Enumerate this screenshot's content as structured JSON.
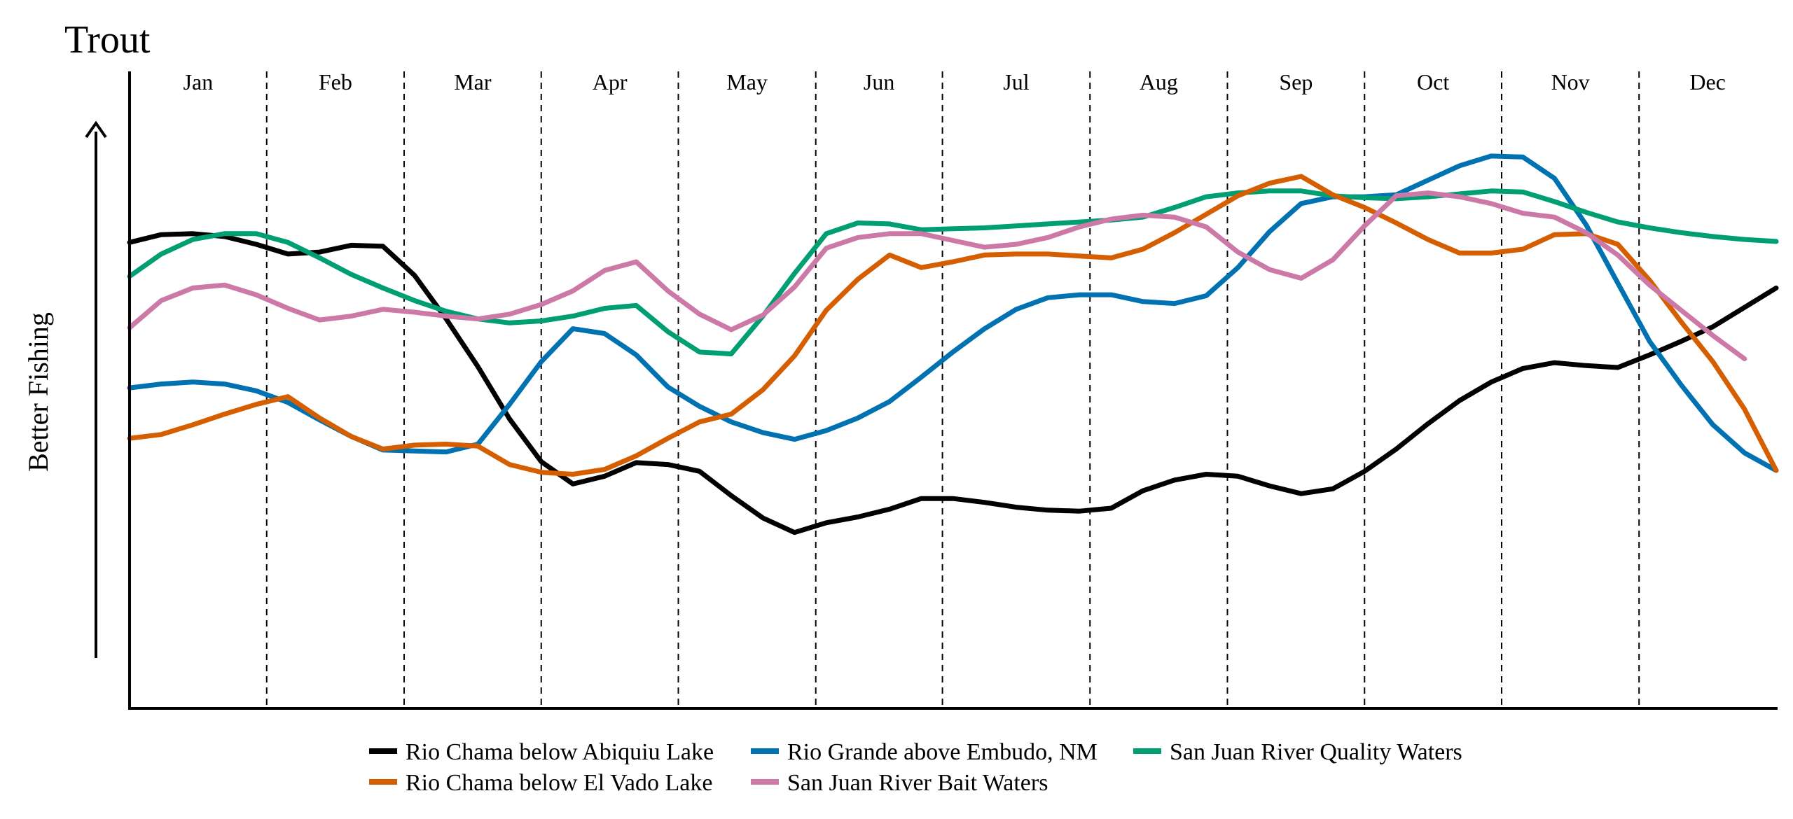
{
  "chart_data": {
    "type": "line",
    "title": "Trout",
    "ylabel": "Better Fishing",
    "xlabel": "",
    "x_unit": "week",
    "xlim": [
      0,
      52
    ],
    "ylim": [
      0,
      100
    ],
    "months": [
      "Jan",
      "Feb",
      "Mar",
      "Apr",
      "May",
      "Jun",
      "Jul",
      "Aug",
      "Sep",
      "Oct",
      "Nov",
      "Dec"
    ],
    "month_boundaries": [
      0,
      4.33,
      8.67,
      13,
      17.33,
      21.67,
      25.67,
      30.33,
      34.67,
      39,
      43.33,
      47.67,
      52
    ],
    "grid": false,
    "legend_position": "bottom",
    "series": [
      {
        "name": "Rio Chama below Abiquiu Lake",
        "color": "#000000",
        "points": [
          [
            0,
            75
          ],
          [
            1,
            76.6
          ],
          [
            2,
            76.8
          ],
          [
            3,
            76.2
          ],
          [
            4,
            74.6
          ],
          [
            5,
            72.6
          ],
          [
            6,
            73
          ],
          [
            7,
            74.4
          ],
          [
            8,
            74.2
          ],
          [
            9,
            68.2
          ],
          [
            10,
            59.2
          ],
          [
            11,
            49.4
          ],
          [
            12,
            38.6
          ],
          [
            13,
            29.8
          ],
          [
            14,
            25.2
          ],
          [
            15,
            26.8
          ],
          [
            16,
            29.6
          ],
          [
            17,
            29.2
          ],
          [
            18,
            27.8
          ],
          [
            19,
            22.8
          ],
          [
            20,
            18.2
          ],
          [
            21,
            15.2
          ],
          [
            22,
            17.2
          ],
          [
            23,
            18.4
          ],
          [
            24,
            20
          ],
          [
            25,
            22.2
          ],
          [
            26,
            22.2
          ],
          [
            27,
            21.4
          ],
          [
            28,
            20.4
          ],
          [
            29,
            19.8
          ],
          [
            30,
            19.6
          ],
          [
            31,
            20.2
          ],
          [
            32,
            23.8
          ],
          [
            33,
            26
          ],
          [
            34,
            27.2
          ],
          [
            35,
            26.8
          ],
          [
            36,
            24.8
          ],
          [
            37,
            23.2
          ],
          [
            38,
            24.2
          ],
          [
            39,
            27.8
          ],
          [
            40,
            32.4
          ],
          [
            41,
            37.6
          ],
          [
            42,
            42.4
          ],
          [
            43,
            46.2
          ],
          [
            44,
            49
          ],
          [
            45,
            50.2
          ],
          [
            46,
            49.6
          ],
          [
            47,
            49.2
          ],
          [
            48,
            51.8
          ],
          [
            49,
            54.6
          ],
          [
            50,
            57.6
          ],
          [
            51,
            61.6
          ],
          [
            52,
            65.6
          ]
        ]
      },
      {
        "name": "Rio Grande above Embudo, NM",
        "color": "#0072b2",
        "points": [
          [
            0,
            45
          ],
          [
            1,
            45.8
          ],
          [
            2,
            46.2
          ],
          [
            3,
            45.8
          ],
          [
            4,
            44.4
          ],
          [
            5,
            42
          ],
          [
            6,
            38.4
          ],
          [
            7,
            35
          ],
          [
            8,
            32.2
          ],
          [
            9,
            32
          ],
          [
            10,
            31.8
          ],
          [
            11,
            33.4
          ],
          [
            12,
            41.6
          ],
          [
            13,
            50.4
          ],
          [
            14,
            57.2
          ],
          [
            15,
            56.2
          ],
          [
            16,
            51.8
          ],
          [
            17,
            45.2
          ],
          [
            18,
            41.2
          ],
          [
            19,
            38
          ],
          [
            20,
            35.8
          ],
          [
            21,
            34.4
          ],
          [
            22,
            36.2
          ],
          [
            23,
            38.8
          ],
          [
            24,
            42.2
          ],
          [
            25,
            47.2
          ],
          [
            26,
            52.4
          ],
          [
            27,
            57.2
          ],
          [
            28,
            61.2
          ],
          [
            29,
            63.6
          ],
          [
            30,
            64.2
          ],
          [
            31,
            64.2
          ],
          [
            32,
            62.8
          ],
          [
            33,
            62.4
          ],
          [
            34,
            64
          ],
          [
            35,
            69.8
          ],
          [
            36,
            77.2
          ],
          [
            37,
            83
          ],
          [
            38,
            84.4
          ],
          [
            39,
            84.4
          ],
          [
            40,
            84.8
          ],
          [
            41,
            87.8
          ],
          [
            42,
            90.8
          ],
          [
            43,
            92.8
          ],
          [
            44,
            92.6
          ],
          [
            45,
            88.2
          ],
          [
            46,
            78.6
          ],
          [
            47,
            66.6
          ],
          [
            48,
            54.6
          ],
          [
            49,
            45.6
          ],
          [
            50,
            37.4
          ],
          [
            51,
            31.6
          ],
          [
            52,
            28
          ]
        ]
      },
      {
        "name": "San Juan River Quality Waters",
        "color": "#009e73",
        "points": [
          [
            0,
            68
          ],
          [
            1,
            72.6
          ],
          [
            2,
            75.6
          ],
          [
            3,
            76.8
          ],
          [
            4,
            76.8
          ],
          [
            5,
            75
          ],
          [
            6,
            71.8
          ],
          [
            7,
            68.4
          ],
          [
            8,
            65.6
          ],
          [
            9,
            63
          ],
          [
            10,
            60.8
          ],
          [
            11,
            59.2
          ],
          [
            12,
            58.4
          ],
          [
            13,
            58.8
          ],
          [
            14,
            59.8
          ],
          [
            15,
            61.4
          ],
          [
            16,
            62
          ],
          [
            17,
            56.6
          ],
          [
            18,
            52.4
          ],
          [
            19,
            52
          ],
          [
            20,
            59.8
          ],
          [
            21,
            68.6
          ],
          [
            22,
            76.8
          ],
          [
            23,
            79
          ],
          [
            24,
            78.8
          ],
          [
            25,
            77.6
          ],
          [
            26,
            77.8
          ],
          [
            27,
            78
          ],
          [
            28,
            78.4
          ],
          [
            29,
            78.8
          ],
          [
            30,
            79.2
          ],
          [
            31,
            79.6
          ],
          [
            32,
            80.2
          ],
          [
            33,
            82.2
          ],
          [
            34,
            84.4
          ],
          [
            35,
            85.2
          ],
          [
            36,
            85.6
          ],
          [
            37,
            85.6
          ],
          [
            38,
            84.6
          ],
          [
            39,
            84.2
          ],
          [
            40,
            84
          ],
          [
            41,
            84.4
          ],
          [
            42,
            85
          ],
          [
            43,
            85.6
          ],
          [
            44,
            85.4
          ],
          [
            45,
            83.4
          ],
          [
            46,
            81.2
          ],
          [
            47,
            79.2
          ],
          [
            48,
            78
          ],
          [
            49,
            77
          ],
          [
            50,
            76.2
          ],
          [
            51,
            75.6
          ],
          [
            52,
            75.2
          ]
        ]
      },
      {
        "name": "Rio Chama below El Vado Lake",
        "color": "#d55e00",
        "points": [
          [
            0,
            34.6
          ],
          [
            1,
            35.4
          ],
          [
            2,
            37.4
          ],
          [
            3,
            39.6
          ],
          [
            4,
            41.6
          ],
          [
            5,
            43.2
          ],
          [
            6,
            38.8
          ],
          [
            7,
            35
          ],
          [
            8,
            32.4
          ],
          [
            9,
            33.2
          ],
          [
            10,
            33.4
          ],
          [
            11,
            33
          ],
          [
            12,
            29.2
          ],
          [
            13,
            27.6
          ],
          [
            14,
            27.2
          ],
          [
            15,
            28.2
          ],
          [
            16,
            31
          ],
          [
            17,
            34.6
          ],
          [
            18,
            38
          ],
          [
            19,
            39.6
          ],
          [
            20,
            44.6
          ],
          [
            21,
            51.6
          ],
          [
            22,
            61
          ],
          [
            23,
            67.4
          ],
          [
            24,
            72.4
          ],
          [
            25,
            69.8
          ],
          [
            26,
            71
          ],
          [
            27,
            72.4
          ],
          [
            28,
            72.6
          ],
          [
            29,
            72.6
          ],
          [
            30,
            72.2
          ],
          [
            31,
            71.8
          ],
          [
            32,
            73.6
          ],
          [
            33,
            77
          ],
          [
            34,
            80.8
          ],
          [
            35,
            84.6
          ],
          [
            36,
            87.2
          ],
          [
            37,
            88.6
          ],
          [
            38,
            84.8
          ],
          [
            39,
            82.2
          ],
          [
            40,
            79
          ],
          [
            41,
            75.6
          ],
          [
            42,
            72.8
          ],
          [
            43,
            72.8
          ],
          [
            44,
            73.6
          ],
          [
            45,
            76.6
          ],
          [
            46,
            76.8
          ],
          [
            47,
            74.6
          ],
          [
            48,
            67.2
          ],
          [
            49,
            58.6
          ],
          [
            50,
            50.4
          ],
          [
            51,
            40.6
          ],
          [
            52,
            28
          ]
        ]
      },
      {
        "name": "San Juan River Bait Waters",
        "color": "#cc79a7",
        "points": [
          [
            0,
            57.4
          ],
          [
            1,
            63
          ],
          [
            2,
            65.6
          ],
          [
            3,
            66.2
          ],
          [
            4,
            64.2
          ],
          [
            5,
            61.4
          ],
          [
            6,
            59
          ],
          [
            7,
            59.8
          ],
          [
            8,
            61.2
          ],
          [
            9,
            60.6
          ],
          [
            10,
            59.8
          ],
          [
            11,
            59.2
          ],
          [
            12,
            60.2
          ],
          [
            13,
            62.2
          ],
          [
            14,
            65
          ],
          [
            15,
            69.2
          ],
          [
            16,
            71
          ],
          [
            17,
            65
          ],
          [
            18,
            60.2
          ],
          [
            19,
            57
          ],
          [
            20,
            60
          ],
          [
            21,
            65.8
          ],
          [
            22,
            73.8
          ],
          [
            23,
            76
          ],
          [
            24,
            76.8
          ],
          [
            25,
            76.8
          ],
          [
            26,
            75.4
          ],
          [
            27,
            74
          ],
          [
            28,
            74.6
          ],
          [
            29,
            76
          ],
          [
            30,
            78.2
          ],
          [
            31,
            79.8
          ],
          [
            32,
            80.6
          ],
          [
            33,
            80.2
          ],
          [
            34,
            78.2
          ],
          [
            35,
            73
          ],
          [
            36,
            69.4
          ],
          [
            37,
            67.6
          ],
          [
            38,
            71.4
          ],
          [
            39,
            78.4
          ],
          [
            40,
            84.6
          ],
          [
            41,
            85.2
          ],
          [
            42,
            84.4
          ],
          [
            43,
            83
          ],
          [
            44,
            81
          ],
          [
            45,
            80.2
          ],
          [
            46,
            77
          ],
          [
            47,
            72.4
          ],
          [
            48,
            66.2
          ],
          [
            49,
            61
          ],
          [
            50,
            55.8
          ],
          [
            51,
            51
          ]
        ]
      }
    ],
    "legend": {
      "rows": [
        [
          "Rio Chama below Abiquiu Lake",
          "Rio Grande above Embudo, NM",
          "San Juan River Quality Waters"
        ],
        [
          "Rio Chama below El Vado Lake",
          "San Juan River Bait Waters"
        ]
      ]
    }
  }
}
